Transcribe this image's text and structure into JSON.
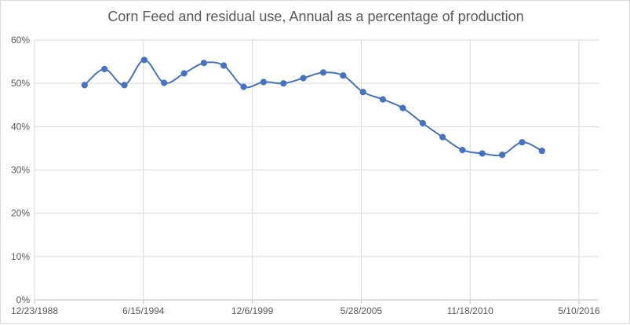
{
  "chart_data": {
    "type": "line",
    "title": "Corn Feed and residual use, Annual as a percentage of production",
    "xlabel": "",
    "ylabel": "",
    "x_ticks": [
      "12/23/1988",
      "6/15/1994",
      "12/6/1999",
      "5/28/2005",
      "11/18/2010",
      "5/10/2016"
    ],
    "y_ticks": [
      "0%",
      "10%",
      "20%",
      "30%",
      "40%",
      "50%",
      "60%"
    ],
    "xlim": [
      "1988-12-23",
      "2016-05-10"
    ],
    "ylim": [
      0,
      60
    ],
    "grid": "vertical and horizontal",
    "legend": "none",
    "series": [
      {
        "color": "#4472c4",
        "x": [
          "1991-06-30",
          "1992-06-30",
          "1993-06-30",
          "1994-06-30",
          "1995-06-30",
          "1996-06-30",
          "1997-06-30",
          "1998-06-30",
          "1999-06-30",
          "2000-06-30",
          "2001-06-30",
          "2002-06-30",
          "2003-06-30",
          "2004-06-30",
          "2005-06-30",
          "2006-06-30",
          "2007-06-30",
          "2008-06-30",
          "2009-06-30",
          "2010-06-30",
          "2011-06-30",
          "2012-06-30",
          "2013-06-30",
          "2014-06-30"
        ],
        "values": [
          49.6,
          53.3,
          49.6,
          55.4,
          50.1,
          52.3,
          54.7,
          54.1,
          49.2,
          50.3,
          50.0,
          51.2,
          52.5,
          51.8,
          48.0,
          46.3,
          44.3,
          40.8,
          37.6,
          34.6,
          33.8,
          33.5,
          36.4,
          34.4
        ]
      }
    ]
  }
}
